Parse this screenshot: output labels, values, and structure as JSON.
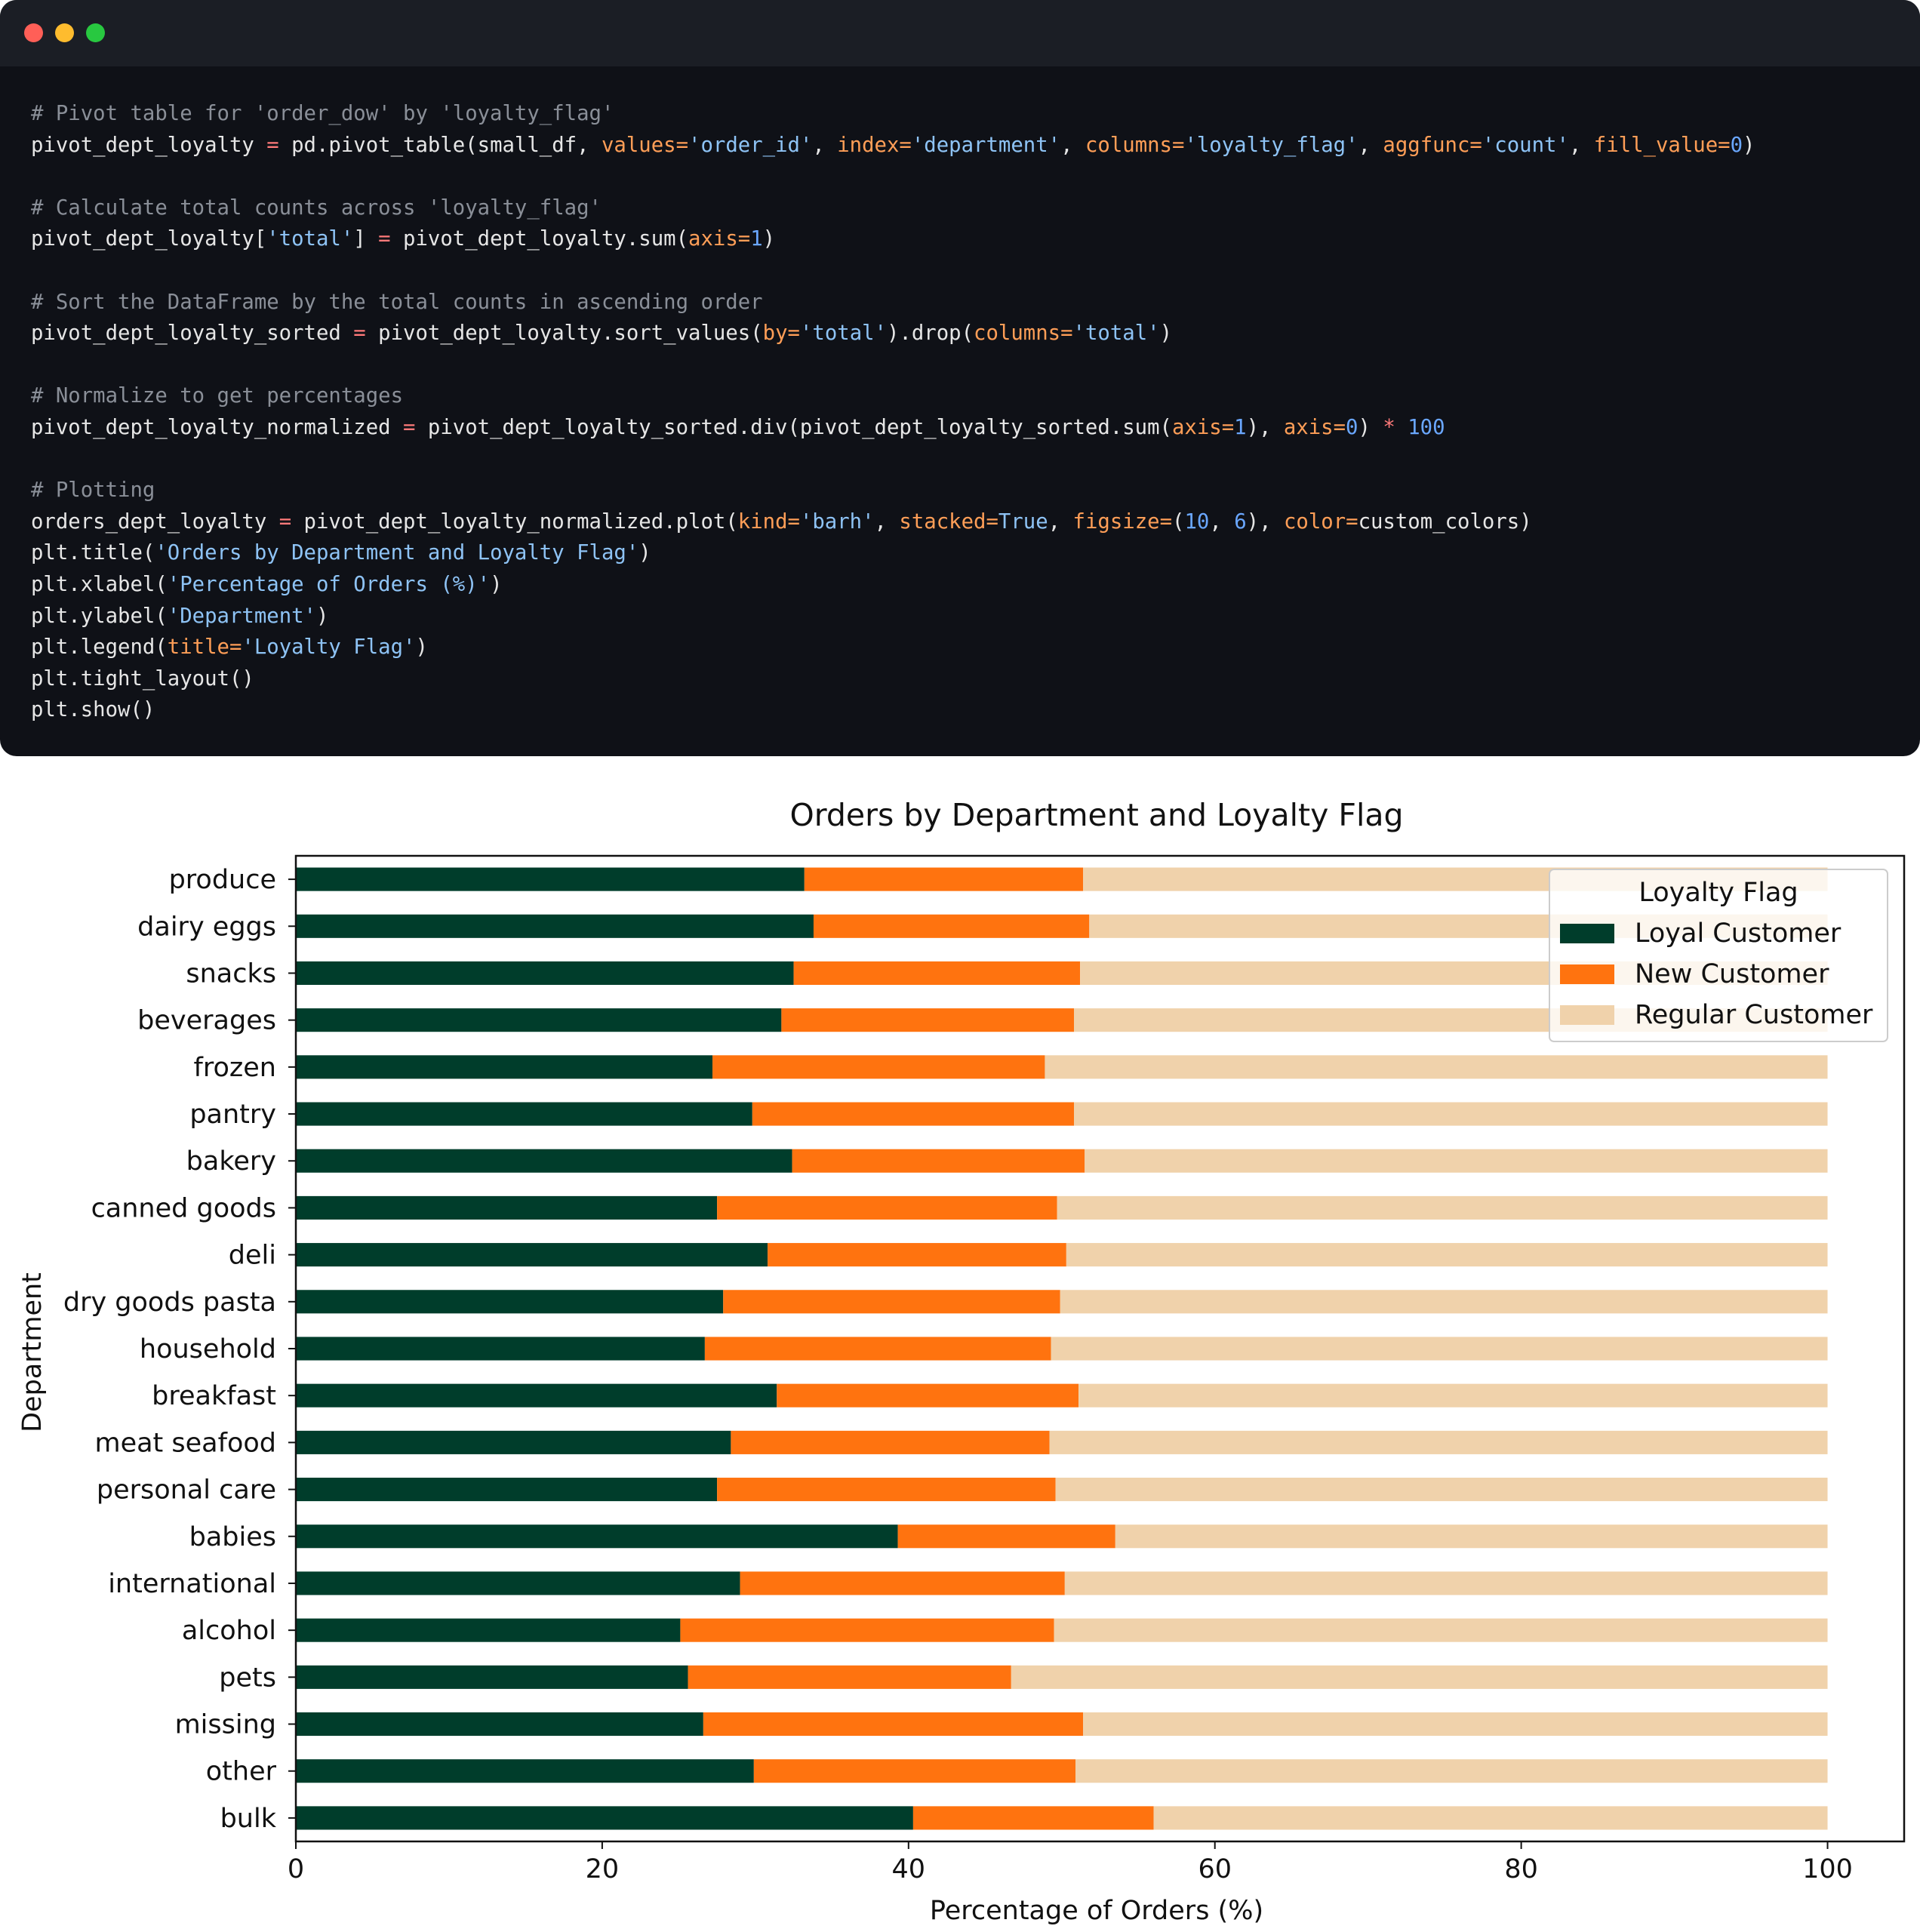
{
  "window": {
    "controls": [
      "close",
      "minimize",
      "maximize"
    ]
  },
  "code_lines": [
    [
      {
        "t": "# Pivot table for 'order_dow' by 'loyalty_flag'",
        "c": "com"
      }
    ],
    [
      {
        "t": "pivot_dept_loyalty ",
        "c": "def"
      },
      {
        "t": "=",
        "c": "op"
      },
      {
        "t": " pd.pivot_table(small_df, ",
        "c": "def"
      },
      {
        "t": "values=",
        "c": "kw"
      },
      {
        "t": "'order_id'",
        "c": "str"
      },
      {
        "t": ", ",
        "c": "def"
      },
      {
        "t": "index=",
        "c": "kw"
      },
      {
        "t": "'department'",
        "c": "str"
      },
      {
        "t": ", ",
        "c": "def"
      },
      {
        "t": "columns=",
        "c": "kw"
      },
      {
        "t": "'loyalty_flag'",
        "c": "str"
      },
      {
        "t": ", ",
        "c": "def"
      },
      {
        "t": "aggfunc=",
        "c": "kw"
      },
      {
        "t": "'count'",
        "c": "str"
      },
      {
        "t": ", ",
        "c": "def"
      },
      {
        "t": "fill_value=",
        "c": "kw"
      },
      {
        "t": "0",
        "c": "num"
      },
      {
        "t": ")",
        "c": "def"
      }
    ],
    [],
    [
      {
        "t": "# Calculate total counts across 'loyalty_flag'",
        "c": "com"
      }
    ],
    [
      {
        "t": "pivot_dept_loyalty[",
        "c": "def"
      },
      {
        "t": "'total'",
        "c": "str"
      },
      {
        "t": "] ",
        "c": "def"
      },
      {
        "t": "=",
        "c": "op"
      },
      {
        "t": " pivot_dept_loyalty.sum(",
        "c": "def"
      },
      {
        "t": "axis=",
        "c": "kw"
      },
      {
        "t": "1",
        "c": "num"
      },
      {
        "t": ")",
        "c": "def"
      }
    ],
    [],
    [
      {
        "t": "# Sort the DataFrame by the total counts in ascending order",
        "c": "com"
      }
    ],
    [
      {
        "t": "pivot_dept_loyalty_sorted ",
        "c": "def"
      },
      {
        "t": "=",
        "c": "op"
      },
      {
        "t": " pivot_dept_loyalty.sort_values(",
        "c": "def"
      },
      {
        "t": "by=",
        "c": "kw"
      },
      {
        "t": "'total'",
        "c": "str"
      },
      {
        "t": ").drop(",
        "c": "def"
      },
      {
        "t": "columns=",
        "c": "kw"
      },
      {
        "t": "'total'",
        "c": "str"
      },
      {
        "t": ")",
        "c": "def"
      }
    ],
    [],
    [
      {
        "t": "# Normalize to get percentages",
        "c": "com"
      }
    ],
    [
      {
        "t": "pivot_dept_loyalty_normalized ",
        "c": "def"
      },
      {
        "t": "=",
        "c": "op"
      },
      {
        "t": " pivot_dept_loyalty_sorted.div(pivot_dept_loyalty_sorted.sum(",
        "c": "def"
      },
      {
        "t": "axis=",
        "c": "kw"
      },
      {
        "t": "1",
        "c": "num"
      },
      {
        "t": "), ",
        "c": "def"
      },
      {
        "t": "axis=",
        "c": "kw"
      },
      {
        "t": "0",
        "c": "num"
      },
      {
        "t": ") ",
        "c": "def"
      },
      {
        "t": "*",
        "c": "op"
      },
      {
        "t": " ",
        "c": "def"
      },
      {
        "t": "100",
        "c": "num"
      }
    ],
    [],
    [
      {
        "t": "# Plotting",
        "c": "com"
      }
    ],
    [
      {
        "t": "orders_dept_loyalty ",
        "c": "def"
      },
      {
        "t": "=",
        "c": "op"
      },
      {
        "t": " pivot_dept_loyalty_normalized.plot(",
        "c": "def"
      },
      {
        "t": "kind=",
        "c": "kw"
      },
      {
        "t": "'barh'",
        "c": "str"
      },
      {
        "t": ", ",
        "c": "def"
      },
      {
        "t": "stacked=",
        "c": "kw"
      },
      {
        "t": "True",
        "c": "str"
      },
      {
        "t": ", ",
        "c": "def"
      },
      {
        "t": "figsize=",
        "c": "kw"
      },
      {
        "t": "(",
        "c": "def"
      },
      {
        "t": "10",
        "c": "num"
      },
      {
        "t": ", ",
        "c": "def"
      },
      {
        "t": "6",
        "c": "num"
      },
      {
        "t": "), ",
        "c": "def"
      },
      {
        "t": "color=",
        "c": "kw"
      },
      {
        "t": "custom_colors)",
        "c": "def"
      }
    ],
    [
      {
        "t": "plt.title(",
        "c": "def"
      },
      {
        "t": "'Orders by Department and Loyalty Flag'",
        "c": "str"
      },
      {
        "t": ")",
        "c": "def"
      }
    ],
    [
      {
        "t": "plt.xlabel(",
        "c": "def"
      },
      {
        "t": "'Percentage of Orders (%)'",
        "c": "str"
      },
      {
        "t": ")",
        "c": "def"
      }
    ],
    [
      {
        "t": "plt.ylabel(",
        "c": "def"
      },
      {
        "t": "'Department'",
        "c": "str"
      },
      {
        "t": ")",
        "c": "def"
      }
    ],
    [
      {
        "t": "plt.legend(",
        "c": "def"
      },
      {
        "t": "title=",
        "c": "kw"
      },
      {
        "t": "'Loyalty Flag'",
        "c": "str"
      },
      {
        "t": ")",
        "c": "def"
      }
    ],
    [
      {
        "t": "plt.tight_layout()",
        "c": "def"
      }
    ],
    [
      {
        "t": "plt.show()",
        "c": "def"
      }
    ]
  ],
  "chart_data": {
    "type": "bar",
    "orientation": "horizontal",
    "stacked": true,
    "title": "Orders by Department and Loyalty Flag",
    "xlabel": "Percentage of Orders (%)",
    "ylabel": "Department",
    "xlim": [
      0,
      105
    ],
    "xticks": [
      0,
      20,
      40,
      60,
      80,
      100
    ],
    "categories": [
      "produce",
      "dairy eggs",
      "snacks",
      "beverages",
      "frozen",
      "pantry",
      "bakery",
      "canned goods",
      "deli",
      "dry goods pasta",
      "household",
      "breakfast",
      "meat seafood",
      "personal care",
      "babies",
      "international",
      "alcohol",
      "pets",
      "missing",
      "other",
      "bulk"
    ],
    "series": [
      {
        "name": "Loyal Customer",
        "color": "#003d2b",
        "values": [
          33.2,
          33.8,
          32.5,
          31.7,
          27.2,
          29.8,
          32.4,
          27.5,
          30.8,
          27.9,
          26.7,
          31.4,
          28.4,
          27.5,
          39.3,
          29.0,
          25.1,
          25.6,
          26.6,
          29.9,
          40.3
        ]
      },
      {
        "name": "New Customer",
        "color": "#ff730f",
        "values": [
          18.2,
          18.0,
          18.7,
          19.1,
          21.7,
          21.0,
          19.1,
          22.2,
          19.5,
          22.0,
          22.6,
          19.7,
          20.8,
          22.1,
          14.2,
          21.2,
          24.4,
          21.1,
          24.8,
          21.0,
          15.7
        ]
      },
      {
        "name": "Regular Customer",
        "color": "#f0d2ab",
        "values": [
          48.6,
          48.2,
          48.8,
          49.2,
          51.1,
          49.2,
          48.5,
          50.3,
          49.7,
          50.1,
          50.7,
          48.9,
          50.8,
          50.4,
          46.5,
          49.8,
          50.5,
          53.3,
          48.6,
          49.1,
          44.0
        ]
      }
    ],
    "legend": {
      "title": "Loyalty Flag",
      "position": "upper right"
    },
    "grid": false
  }
}
